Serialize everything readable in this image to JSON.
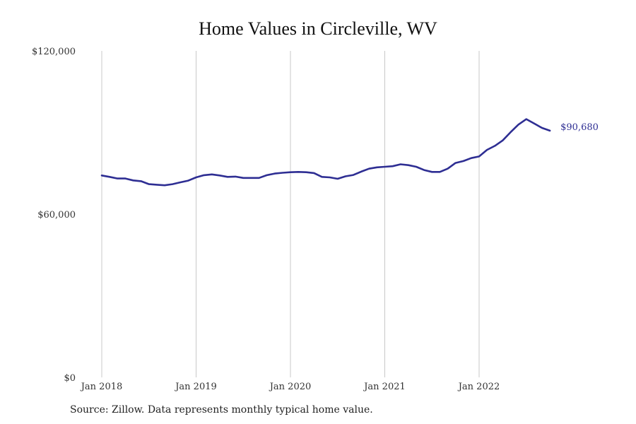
{
  "chart_data": {
    "type": "line",
    "title": "Home Values in Circleville, WV",
    "xlabel": "",
    "ylabel": "",
    "ylim": [
      0,
      120000
    ],
    "y_ticks": [
      {
        "value": 0,
        "label": "$0"
      },
      {
        "value": 60000,
        "label": "$60,000"
      },
      {
        "value": 120000,
        "label": "$120,000"
      }
    ],
    "x_ticks": [
      {
        "value": "2018-01",
        "label": "Jan 2018"
      },
      {
        "value": "2019-01",
        "label": "Jan 2019"
      },
      {
        "value": "2020-01",
        "label": "Jan 2020"
      },
      {
        "value": "2021-01",
        "label": "Jan 2021"
      },
      {
        "value": "2022-01",
        "label": "Jan 2022"
      }
    ],
    "grid": "vertical",
    "line_color": "#2e2e93",
    "end_label": "$90,680",
    "series": [
      {
        "x": [
          "2018-01",
          "2018-02",
          "2018-03",
          "2018-04",
          "2018-05",
          "2018-06",
          "2018-07",
          "2018-08",
          "2018-09",
          "2018-10",
          "2018-11",
          "2018-12",
          "2019-01",
          "2019-02",
          "2019-03",
          "2019-04",
          "2019-05",
          "2019-06",
          "2019-07",
          "2019-08",
          "2019-09",
          "2019-10",
          "2019-11",
          "2019-12",
          "2020-01",
          "2020-02",
          "2020-03",
          "2020-04",
          "2020-05",
          "2020-06",
          "2020-07",
          "2020-08",
          "2020-09",
          "2020-10",
          "2020-11",
          "2020-12",
          "2021-01",
          "2021-02",
          "2021-03",
          "2021-04",
          "2021-05",
          "2021-06",
          "2021-07",
          "2021-08",
          "2021-09",
          "2021-10",
          "2021-11",
          "2021-12",
          "2022-01",
          "2022-02",
          "2022-03",
          "2022-04",
          "2022-05",
          "2022-06",
          "2022-07",
          "2022-08",
          "2022-09",
          "2022-10"
        ],
        "values": [
          74200,
          73700,
          73100,
          73100,
          72400,
          72100,
          71000,
          70800,
          70600,
          71000,
          71700,
          72300,
          73500,
          74300,
          74600,
          74200,
          73700,
          73800,
          73300,
          73300,
          73300,
          74300,
          74900,
          75200,
          75400,
          75500,
          75400,
          75100,
          73700,
          73500,
          73000,
          73900,
          74400,
          75600,
          76700,
          77200,
          77400,
          77600,
          78300,
          78000,
          77400,
          76200,
          75500,
          75500,
          76700,
          78800,
          79500,
          80600,
          81200,
          83600,
          85100,
          87100,
          90100,
          92900,
          94900,
          93300,
          91700,
          90680
        ]
      }
    ]
  },
  "footer": {
    "source": "Source: Zillow. Data represents monthly typical home value."
  }
}
